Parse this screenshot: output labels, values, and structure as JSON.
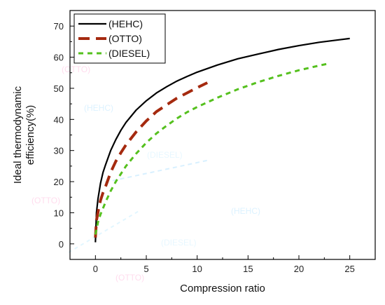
{
  "chart_data": {
    "type": "line",
    "title": "",
    "xlabel": "Compression ratio",
    "ylabel": "Ideal thermodynamic efficiency(%)",
    "xlim": [
      -2.5,
      27.5
    ],
    "ylim": [
      -5,
      75
    ],
    "xticks": [
      0,
      5,
      10,
      15,
      20,
      25
    ],
    "yticks": [
      0,
      10,
      20,
      30,
      40,
      50,
      60,
      70
    ],
    "grid": false,
    "legend_position": "top-left",
    "series": [
      {
        "name": "(HEHC)",
        "color": "#000000",
        "style": "solid",
        "x": [
          0.0,
          0.1,
          0.25,
          0.5,
          0.75,
          1.0,
          1.5,
          2.0,
          2.5,
          3.0,
          4.0,
          5.0,
          6.0,
          7.0,
          8.0,
          9.0,
          10.0,
          12.0,
          14.0,
          16.0,
          18.0,
          20.0,
          22.0,
          24.0,
          25.0
        ],
        "y": [
          0.5,
          10.0,
          14.5,
          19.5,
          23.0,
          25.5,
          30.0,
          33.5,
          36.5,
          39.0,
          43.0,
          46.0,
          48.5,
          50.5,
          52.3,
          53.8,
          55.2,
          57.5,
          59.5,
          61.0,
          62.5,
          63.7,
          64.8,
          65.6,
          66.0
        ]
      },
      {
        "name": "(OTTO)",
        "color": "#a52a0f",
        "style": "dashed",
        "x": [
          0.0,
          0.1,
          0.3,
          0.5,
          0.75,
          1.0,
          1.5,
          2.0,
          2.5,
          3.0,
          4.0,
          5.0,
          6.0,
          7.0,
          8.0,
          9.0,
          10.0,
          11.0
        ],
        "y": [
          2.0,
          7.5,
          11.0,
          14.0,
          16.5,
          18.5,
          23.0,
          26.5,
          29.3,
          31.8,
          36.0,
          39.5,
          42.5,
          44.7,
          46.8,
          48.5,
          50.2,
          51.8
        ]
      },
      {
        "name": "(DIESEL)",
        "color": "#55c01e",
        "style": "dotted",
        "x": [
          0.0,
          0.25,
          0.5,
          1.0,
          1.5,
          2.0,
          2.5,
          3.0,
          4.0,
          5.0,
          6.0,
          7.0,
          8.0,
          9.0,
          10.0,
          12.0,
          14.0,
          16.0,
          18.0,
          20.0,
          22.0,
          23.0
        ],
        "y": [
          3.0,
          7.0,
          9.5,
          13.5,
          17.0,
          20.0,
          22.5,
          25.0,
          29.0,
          32.5,
          35.5,
          38.0,
          40.3,
          42.3,
          44.0,
          47.0,
          49.7,
          52.0,
          54.0,
          55.8,
          57.3,
          58.0
        ]
      }
    ]
  },
  "watermark": {
    "texts": [
      "(OTTO)",
      "(HEHC)",
      "(DIESEL)",
      "(OTTO)",
      "(HEHC)",
      "(DIESEL)",
      "(OTTO)"
    ],
    "colors": [
      "#ff3fa0",
      "#3fb8ff",
      "#7fd8ff"
    ]
  }
}
